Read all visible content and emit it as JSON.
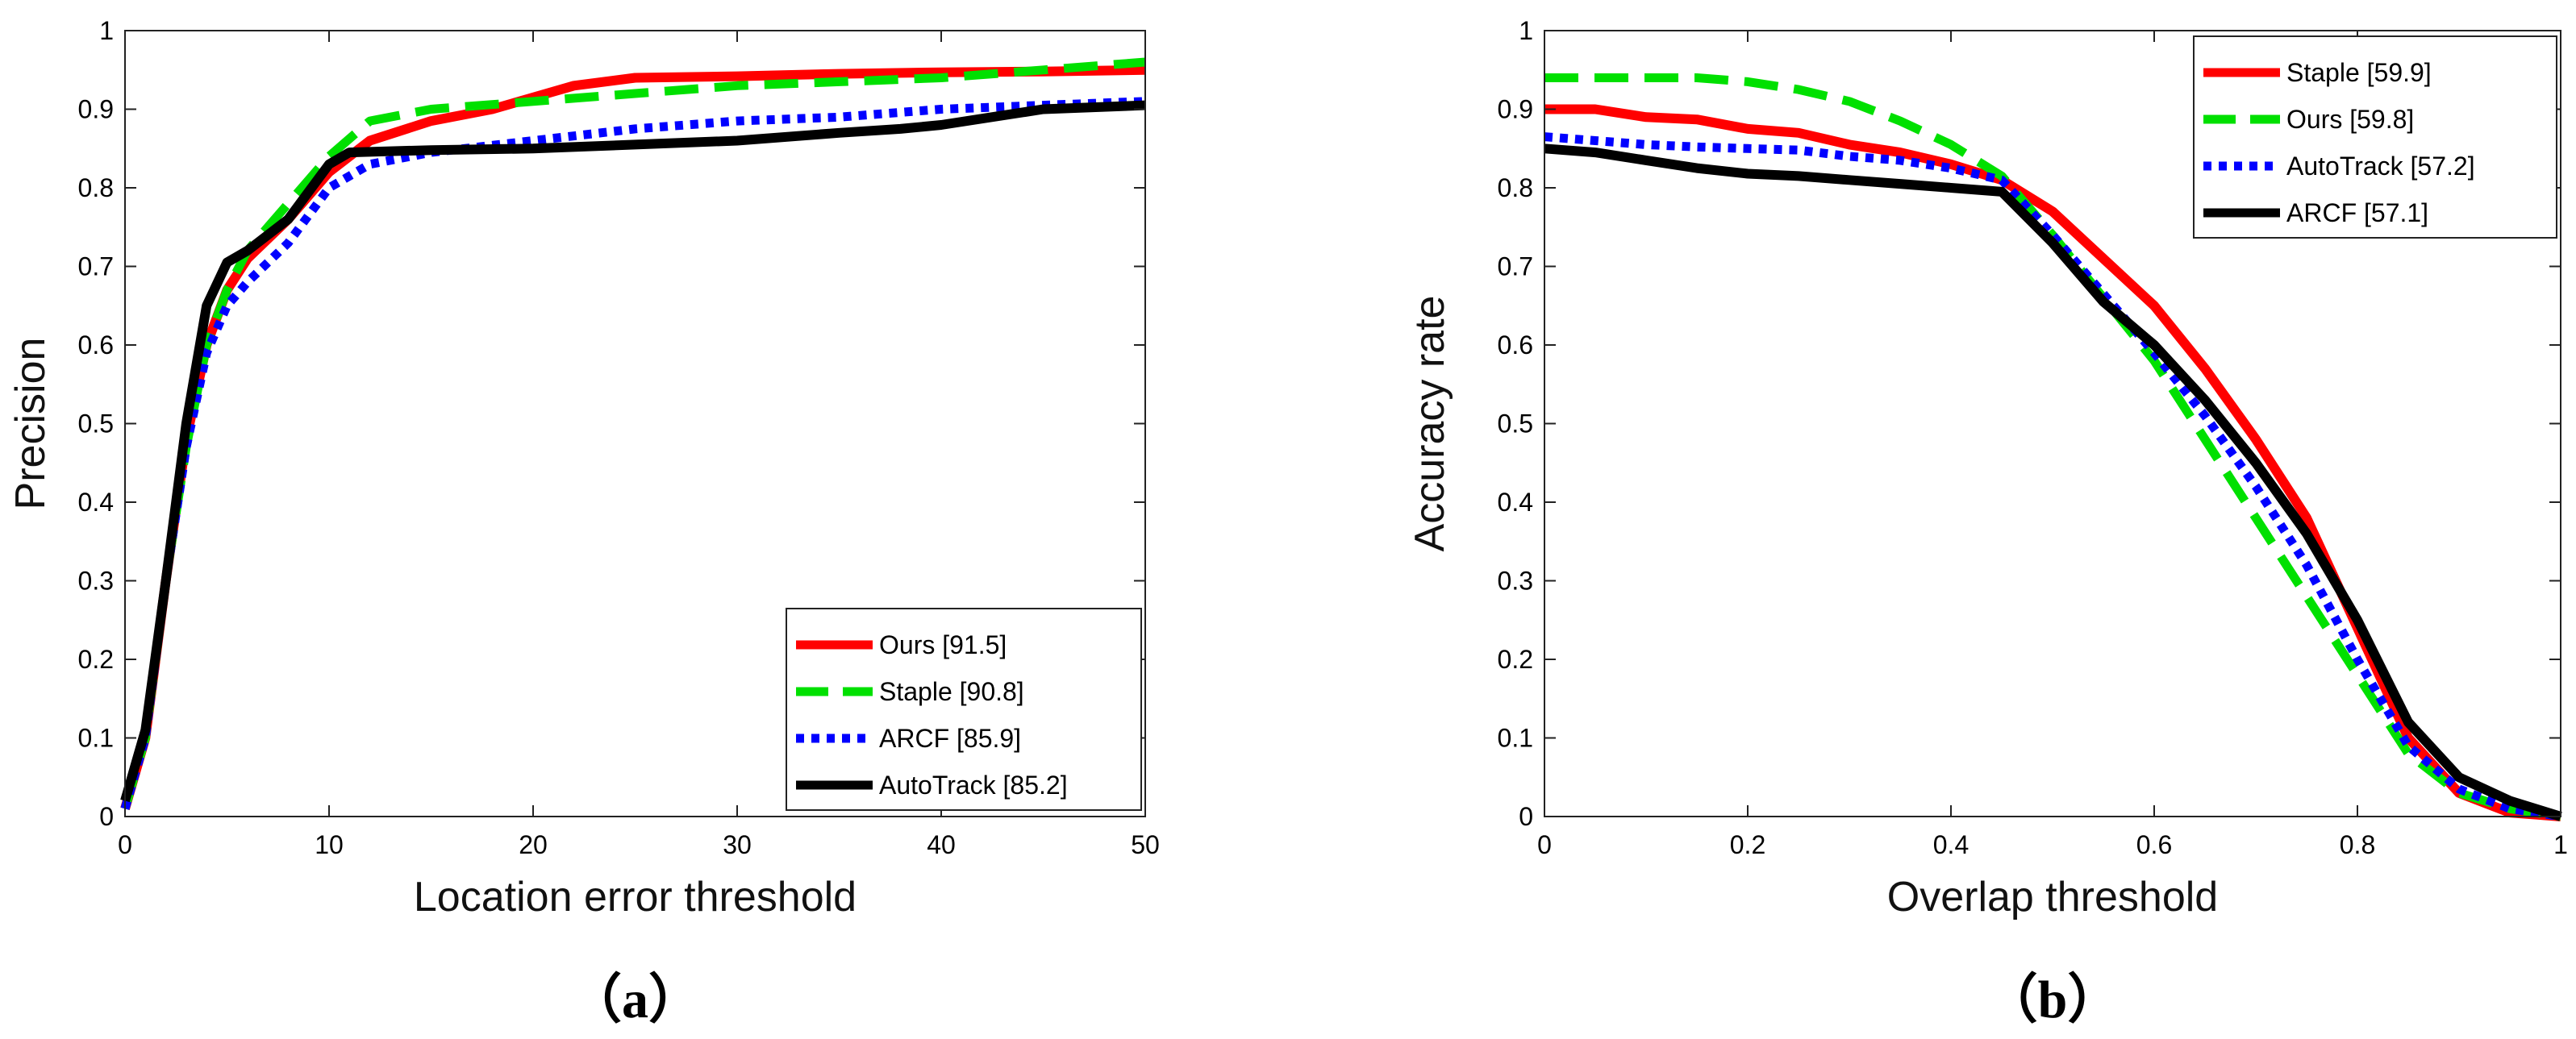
{
  "chart_data": [
    {
      "type": "line",
      "title": "",
      "panel_label": "（a）",
      "xlabel": "Location error threshold",
      "ylabel": "Precision",
      "xlim": [
        0,
        50
      ],
      "ylim": [
        0,
        1
      ],
      "xticks": [
        0,
        10,
        20,
        30,
        40,
        50
      ],
      "xtick_labels": [
        "0",
        "10",
        "20",
        "30",
        "40",
        "50"
      ],
      "yticks": [
        0,
        0.1,
        0.2,
        0.3,
        0.4,
        0.5,
        0.6,
        0.7,
        0.8,
        0.9,
        1
      ],
      "ytick_labels": [
        "0",
        "0.1",
        "0.2",
        "0.3",
        "0.4",
        "0.5",
        "0.6",
        "0.7",
        "0.8",
        "0.9",
        "1"
      ],
      "grid": false,
      "legend_position": "bottom-right",
      "series": [
        {
          "name": "Ours [91.5]",
          "color": "#ff0000",
          "style": "solid",
          "x": [
            0,
            1,
            2,
            3,
            4,
            5,
            6,
            8,
            10,
            12,
            15,
            18,
            20,
            22,
            25,
            30,
            35,
            40,
            45,
            50
          ],
          "y": [
            0.01,
            0.1,
            0.3,
            0.48,
            0.6,
            0.67,
            0.71,
            0.76,
            0.82,
            0.86,
            0.885,
            0.9,
            0.915,
            0.93,
            0.94,
            0.942,
            0.945,
            0.947,
            0.948,
            0.95
          ]
        },
        {
          "name": "Staple [90.8]",
          "color": "#00e000",
          "style": "dashed",
          "x": [
            0,
            1,
            2,
            3,
            4,
            5,
            6,
            8,
            10,
            12,
            15,
            20,
            25,
            30,
            35,
            40,
            45,
            50
          ],
          "y": [
            0.01,
            0.1,
            0.3,
            0.47,
            0.6,
            0.67,
            0.72,
            0.78,
            0.84,
            0.885,
            0.9,
            0.91,
            0.92,
            0.93,
            0.935,
            0.94,
            0.95,
            0.96
          ]
        },
        {
          "name": "ARCF [85.9]",
          "color": "#0000ff",
          "style": "dotted",
          "x": [
            0,
            1,
            2,
            3,
            4,
            5,
            6,
            8,
            10,
            12,
            15,
            20,
            25,
            30,
            35,
            40,
            45,
            50
          ],
          "y": [
            0.01,
            0.1,
            0.3,
            0.47,
            0.59,
            0.65,
            0.68,
            0.73,
            0.8,
            0.83,
            0.845,
            0.86,
            0.875,
            0.885,
            0.89,
            0.9,
            0.905,
            0.91
          ]
        },
        {
          "name": "AutoTrack [85.2]",
          "color": "#000000",
          "style": "solid",
          "x": [
            0,
            1,
            2,
            3,
            4,
            5,
            6,
            8,
            10,
            11,
            15,
            20,
            25,
            30,
            35,
            38,
            40,
            45,
            50
          ],
          "y": [
            0.02,
            0.11,
            0.3,
            0.5,
            0.65,
            0.705,
            0.72,
            0.76,
            0.83,
            0.845,
            0.848,
            0.85,
            0.855,
            0.86,
            0.87,
            0.875,
            0.88,
            0.9,
            0.905
          ]
        }
      ]
    },
    {
      "type": "line",
      "title": "",
      "panel_label": "（b）",
      "xlabel": "Overlap threshold",
      "ylabel": "Accuracy rate",
      "xlim": [
        0,
        1
      ],
      "ylim": [
        0,
        1
      ],
      "xticks": [
        0,
        0.2,
        0.4,
        0.6,
        0.8,
        1
      ],
      "xtick_labels": [
        "0",
        "0.2",
        "0.4",
        "0.6",
        "0.8",
        "1"
      ],
      "yticks": [
        0,
        0.1,
        0.2,
        0.3,
        0.4,
        0.5,
        0.6,
        0.7,
        0.8,
        0.9,
        1
      ],
      "ytick_labels": [
        "0",
        "0.1",
        "0.2",
        "0.3",
        "0.4",
        "0.5",
        "0.6",
        "0.7",
        "0.8",
        "0.9",
        "1"
      ],
      "grid": false,
      "legend_position": "top-right",
      "series": [
        {
          "name": "Staple [59.9]",
          "color": "#ff0000",
          "style": "solid",
          "x": [
            0,
            0.05,
            0.1,
            0.15,
            0.2,
            0.25,
            0.3,
            0.35,
            0.4,
            0.45,
            0.5,
            0.55,
            0.6,
            0.65,
            0.7,
            0.75,
            0.8,
            0.85,
            0.9,
            0.95,
            1
          ],
          "y": [
            0.9,
            0.9,
            0.89,
            0.887,
            0.875,
            0.87,
            0.855,
            0.845,
            0.83,
            0.81,
            0.77,
            0.71,
            0.65,
            0.57,
            0.48,
            0.38,
            0.24,
            0.1,
            0.03,
            0.005,
            0.0
          ]
        },
        {
          "name": "Ours [59.8]",
          "color": "#00e000",
          "style": "dashed",
          "x": [
            0,
            0.05,
            0.1,
            0.15,
            0.2,
            0.25,
            0.3,
            0.35,
            0.4,
            0.45,
            0.5,
            0.55,
            0.6,
            0.65,
            0.7,
            0.75,
            0.8,
            0.85,
            0.9,
            0.95,
            1
          ],
          "y": [
            0.94,
            0.94,
            0.94,
            0.94,
            0.935,
            0.925,
            0.91,
            0.885,
            0.855,
            0.815,
            0.74,
            0.66,
            0.58,
            0.48,
            0.38,
            0.28,
            0.18,
            0.08,
            0.03,
            0.01,
            0.0
          ]
        },
        {
          "name": "AutoTrack [57.2]",
          "color": "#0000ff",
          "style": "dotted",
          "x": [
            0,
            0.05,
            0.1,
            0.15,
            0.2,
            0.25,
            0.3,
            0.35,
            0.4,
            0.45,
            0.5,
            0.55,
            0.6,
            0.65,
            0.7,
            0.75,
            0.8,
            0.85,
            0.9,
            0.95,
            1
          ],
          "y": [
            0.865,
            0.86,
            0.855,
            0.852,
            0.85,
            0.848,
            0.84,
            0.835,
            0.825,
            0.81,
            0.74,
            0.665,
            0.59,
            0.51,
            0.42,
            0.32,
            0.2,
            0.09,
            0.035,
            0.01,
            0.0
          ]
        },
        {
          "name": "ARCF [57.1]",
          "color": "#000000",
          "style": "solid",
          "x": [
            0,
            0.05,
            0.1,
            0.15,
            0.2,
            0.25,
            0.3,
            0.35,
            0.4,
            0.45,
            0.5,
            0.55,
            0.6,
            0.65,
            0.7,
            0.75,
            0.8,
            0.85,
            0.9,
            0.95,
            1
          ],
          "y": [
            0.85,
            0.845,
            0.835,
            0.825,
            0.818,
            0.815,
            0.81,
            0.805,
            0.8,
            0.795,
            0.73,
            0.655,
            0.6,
            0.53,
            0.45,
            0.36,
            0.25,
            0.12,
            0.05,
            0.02,
            0.0
          ]
        }
      ]
    }
  ]
}
